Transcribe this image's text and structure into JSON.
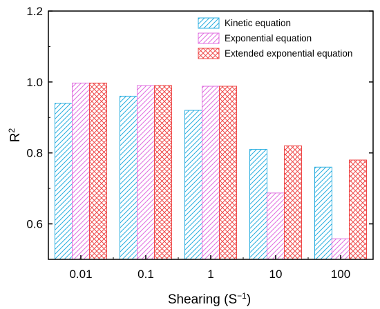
{
  "chart_data": {
    "type": "bar",
    "categories": [
      "0.01",
      "0.1",
      "1",
      "10",
      "100"
    ],
    "series": [
      {
        "name": "Kinetic equation",
        "values": [
          0.94,
          0.96,
          0.92,
          0.81,
          0.76
        ],
        "color": "#29aee0",
        "pattern": "diagonal-hatch"
      },
      {
        "name": "Exponential equation",
        "values": [
          0.997,
          0.99,
          0.988,
          0.687,
          0.558
        ],
        "color": "#e06ee0",
        "pattern": "diagonal-hatch"
      },
      {
        "name": "Extended exponential equation",
        "values": [
          0.997,
          0.99,
          0.988,
          0.82,
          0.78
        ],
        "color": "#ef4a4a",
        "pattern": "crosshatch"
      }
    ],
    "xlabel": "Shearing (S",
    "xlabel_superscript": "−1",
    "xlabel_suffix": ")",
    "ylabel": "R",
    "ylabel_superscript": "2",
    "ylim": [
      0.5,
      1.2
    ],
    "yticks": [
      "0.6",
      "0.8",
      "1.0",
      "1.2"
    ],
    "ytick_values": [
      0.6,
      0.8,
      1.0,
      1.2
    ],
    "legend_position": "top-right",
    "grid": false
  }
}
